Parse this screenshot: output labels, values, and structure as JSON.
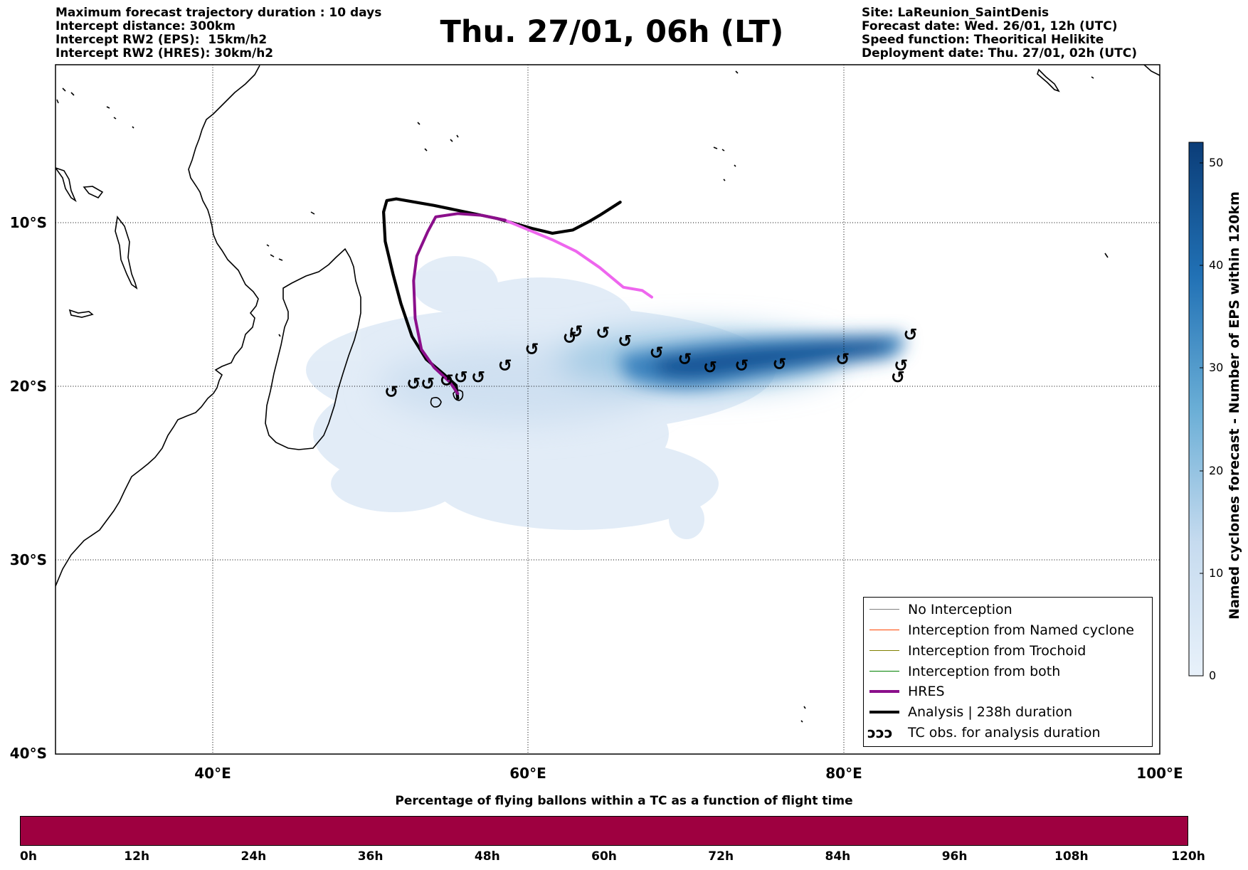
{
  "header": {
    "title": "Thu. 27/01, 06h (LT)",
    "left_lines": [
      "Maximum forecast trajectory duration : 10 days",
      "Intercept distance: 300km",
      "Intercept RW2 (EPS):  15km/h2",
      "Intercept RW2 (HRES): 30km/h2"
    ],
    "right_lines": [
      "Site: LaReunion_SaintDenis",
      "Forecast date: Wed. 26/01, 12h (UTC)",
      "Speed function: Theoritical Helikite",
      "Deployment date: Thu. 27/01, 02h (UTC)"
    ]
  },
  "map": {
    "lat_labels": [
      "10°S",
      "20°S",
      "30°S",
      "40°S"
    ],
    "lon_labels": [
      "40°E",
      "60°E",
      "80°E",
      "100°E"
    ],
    "lon_range": [
      30,
      100
    ],
    "lat_range": [
      -40,
      1
    ],
    "grid": true,
    "colors": {
      "analysis": "#000000",
      "hres": "#8b0f8b",
      "hres_light": "#ee66ee",
      "density_low": "#e3edf8",
      "density_high": "#0b3d78",
      "no_interception": "#808080",
      "named_cyclone": "#ff4500",
      "trochoid": "#808000",
      "both": "#008000"
    },
    "analysis_track": [
      [
        65.8,
        -8.4
      ],
      [
        64.5,
        -9.2
      ],
      [
        63.8,
        -9.6
      ],
      [
        62.8,
        -10.1
      ],
      [
        61.5,
        -10.3
      ],
      [
        60.2,
        -10.0
      ],
      [
        58.0,
        -9.4
      ],
      [
        56.0,
        -9.0
      ],
      [
        54.0,
        -8.6
      ],
      [
        52.8,
        -8.4
      ],
      [
        51.6,
        -8.2
      ],
      [
        51.0,
        -8.3
      ],
      [
        50.8,
        -9.0
      ],
      [
        50.9,
        -10.8
      ],
      [
        51.4,
        -12.8
      ],
      [
        51.9,
        -14.6
      ],
      [
        52.6,
        -16.6
      ],
      [
        53.5,
        -18.0
      ],
      [
        54.6,
        -18.9
      ],
      [
        55.4,
        -19.6
      ],
      [
        55.5,
        -20.4
      ]
    ],
    "hres_track": [
      [
        55.5,
        -20.1
      ],
      [
        55.0,
        -19.4
      ],
      [
        54.0,
        -18.5
      ],
      [
        53.2,
        -17.4
      ],
      [
        52.8,
        -15.5
      ],
      [
        52.7,
        -13.2
      ],
      [
        52.9,
        -11.7
      ],
      [
        53.6,
        -10.2
      ],
      [
        54.1,
        -9.3
      ],
      [
        55.5,
        -9.1
      ],
      [
        57.0,
        -9.2
      ],
      [
        58.5,
        -9.5
      ],
      [
        60.0,
        -10.1
      ],
      [
        61.5,
        -10.7
      ],
      [
        63.0,
        -11.4
      ],
      [
        64.5,
        -12.4
      ],
      [
        66.0,
        -13.6
      ],
      [
        67.2,
        -13.8
      ],
      [
        67.8,
        -14.2
      ]
    ],
    "tc_obs": [
      [
        51.3,
        -20.0
      ],
      [
        52.7,
        -19.5
      ],
      [
        53.6,
        -19.5
      ],
      [
        54.8,
        -19.3
      ],
      [
        55.7,
        -19.1
      ],
      [
        56.8,
        -19.1
      ],
      [
        58.5,
        -18.4
      ],
      [
        60.2,
        -17.4
      ],
      [
        62.6,
        -16.7
      ],
      [
        63.0,
        -16.3
      ],
      [
        64.7,
        -16.4
      ],
      [
        66.1,
        -16.9
      ],
      [
        68.1,
        -17.6
      ],
      [
        69.9,
        -18.0
      ],
      [
        71.5,
        -18.5
      ],
      [
        73.5,
        -18.4
      ],
      [
        75.9,
        -18.3
      ],
      [
        79.9,
        -18.0
      ],
      [
        83.4,
        -19.1
      ],
      [
        83.6,
        -18.4
      ],
      [
        84.2,
        -16.5
      ]
    ]
  },
  "colorbar": {
    "label": "Named cyclones forecast - Number of EPS within 120km",
    "ticks": [
      "0",
      "10",
      "20",
      "30",
      "40",
      "50"
    ],
    "vmin": 0,
    "vmax": 52
  },
  "legend": {
    "items": [
      {
        "label": "No Interception",
        "color": "#808080",
        "style": "thin"
      },
      {
        "label": "Interception from Named cyclone",
        "color": "#ff4500",
        "style": "thin"
      },
      {
        "label": "Interception from Trochoid",
        "color": "#808000",
        "style": "thin"
      },
      {
        "label": "Interception from both",
        "color": "#008000",
        "style": "thin"
      },
      {
        "label": "HRES",
        "color": "#8b0f8b",
        "style": "thick"
      },
      {
        "label": "Analysis | 238h duration",
        "color": "#000000",
        "style": "thick"
      },
      {
        "label": "TC obs. for analysis duration",
        "color": "#000000",
        "style": "symbol",
        "symbol": "ↄↄↄ"
      }
    ]
  },
  "timebar": {
    "title": "Percentage of flying ballons within a TC as a function of flight time",
    "color": "#9e0040",
    "ticks": [
      "0h",
      "12h",
      "24h",
      "36h",
      "48h",
      "60h",
      "72h",
      "84h",
      "96h",
      "108h",
      "120h"
    ]
  }
}
